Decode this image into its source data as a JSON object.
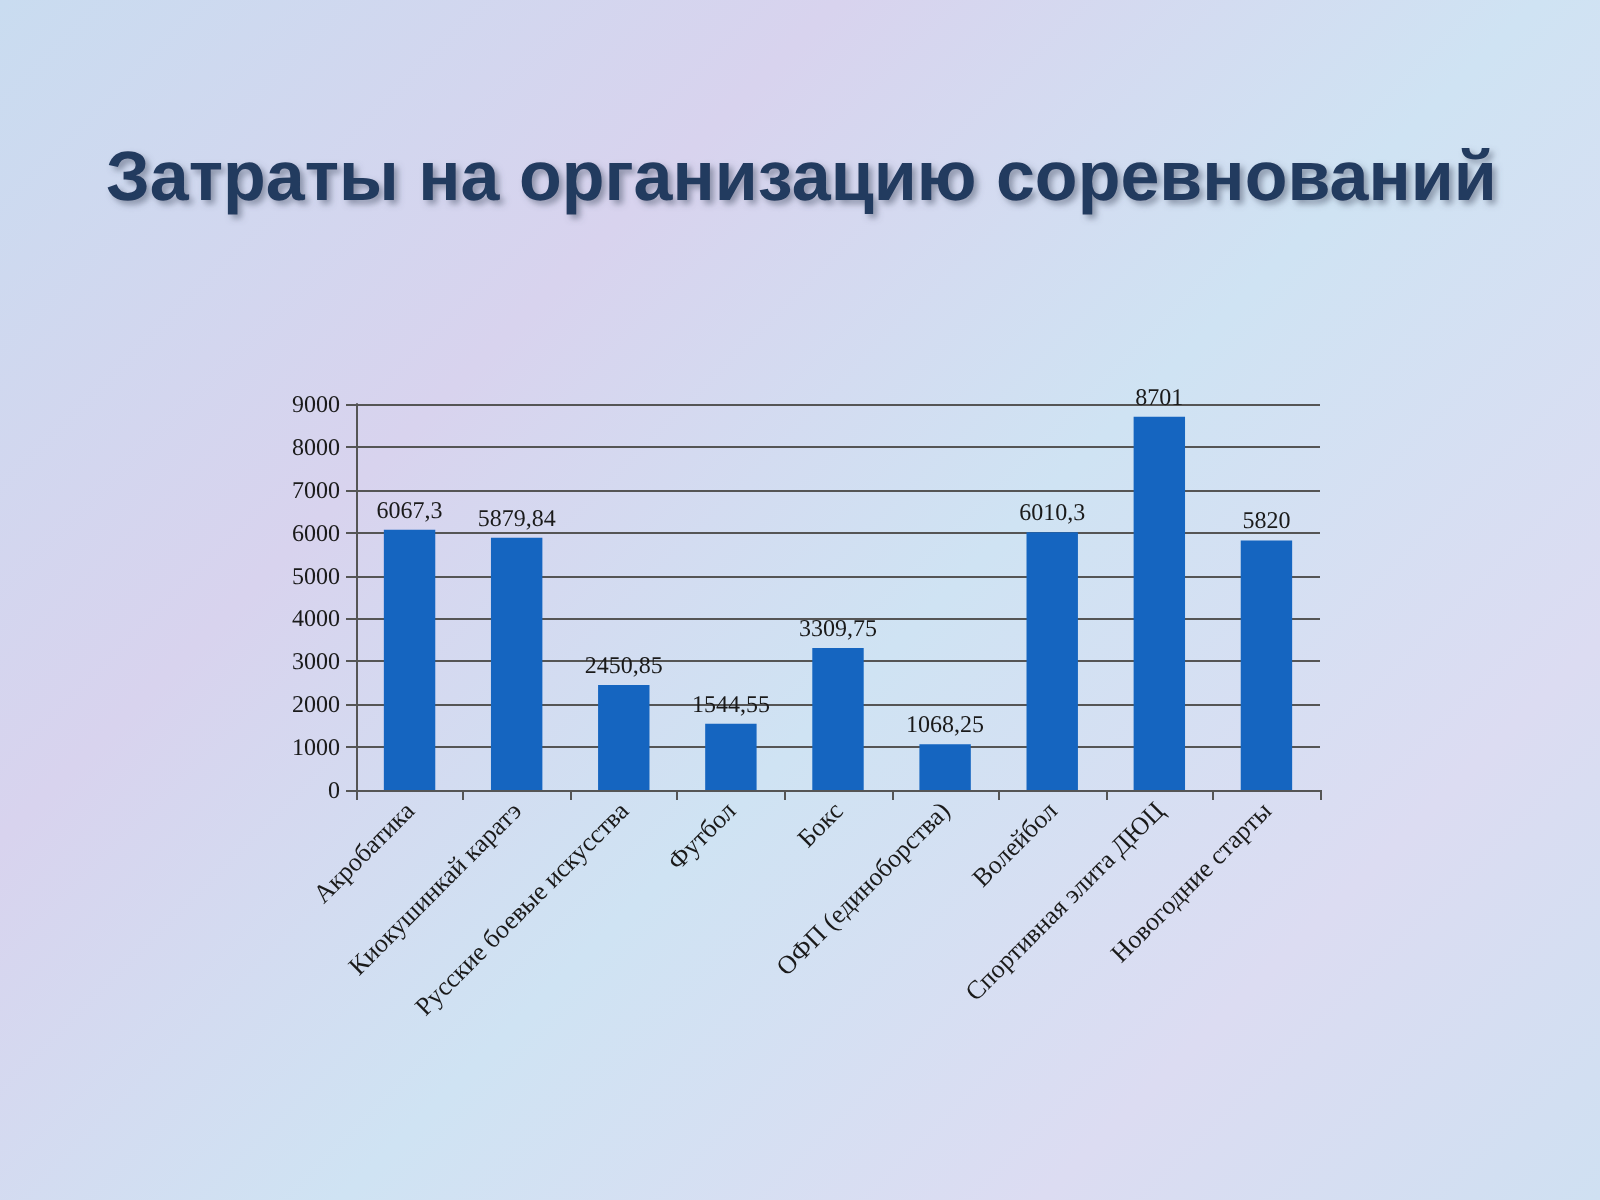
{
  "chart_data": {
    "type": "bar",
    "title": "Затраты на организацию соревнований",
    "categories": [
      "Акробатика",
      "Киокушинкай каратэ",
      "Русские боевые искусства",
      "Футбол",
      "Бокс",
      "ОФП (единоборства)",
      "Волейбол",
      "Спортивная элита ДЮЦ",
      "Новогодние старты"
    ],
    "values": [
      6067.3,
      5879.84,
      2450.85,
      1544.55,
      3309.75,
      1068.25,
      6010.3,
      8701,
      5820
    ],
    "value_labels": [
      "6067,3",
      "5879,84",
      "2450,85",
      "1544,55",
      "3309,75",
      "1068,25",
      "6010,3",
      "8701",
      "5820"
    ],
    "color": "#1565c0",
    "ylim": [
      0,
      9000
    ],
    "yticks": [
      0,
      1000,
      2000,
      3000,
      4000,
      5000,
      6000,
      7000,
      8000,
      9000
    ],
    "grid": "y"
  }
}
